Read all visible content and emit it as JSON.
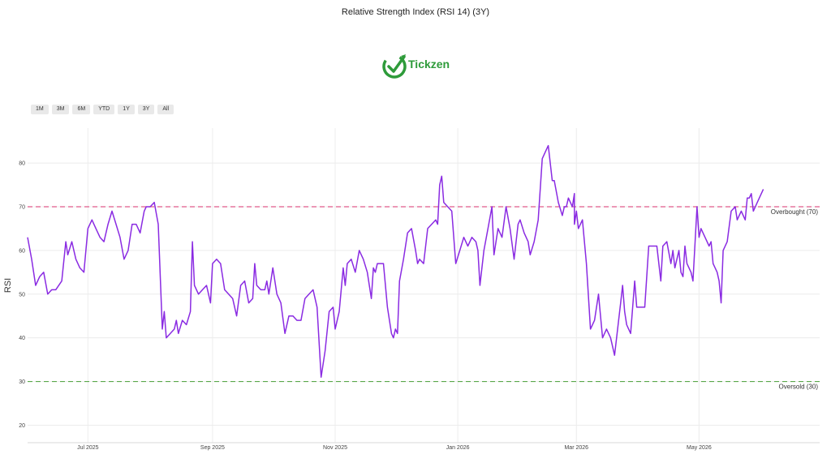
{
  "chart_data": {
    "type": "line",
    "title": "Relative Strength Index (RSI 14) (3Y)",
    "ylabel": "RSI",
    "xlabel": "",
    "ylim": [
      16,
      88
    ],
    "grid": true,
    "x_start": "2025-06-01",
    "x_end": "2026-06-30",
    "x_ticks": [
      {
        "date": "2025-07-01",
        "label": "Jul 2025"
      },
      {
        "date": "2025-09-01",
        "label": "Sep 2025"
      },
      {
        "date": "2025-11-01",
        "label": "Nov 2025"
      },
      {
        "date": "2026-01-01",
        "label": "Jan 2026"
      },
      {
        "date": "2026-03-01",
        "label": "Mar 2026"
      },
      {
        "date": "2026-05-01",
        "label": "May 2026"
      }
    ],
    "y_ticks": [
      20,
      30,
      40,
      50,
      60,
      70,
      80
    ],
    "reference_lines": [
      {
        "value": 70,
        "label": "Overbought (70)",
        "color": "#e05a8a"
      },
      {
        "value": 30,
        "label": "Oversold (30)",
        "color": "#5aa84a"
      }
    ],
    "series": [
      {
        "color": "#8a2be2",
        "points": [
          [
            "2025-06-01",
            63
          ],
          [
            "2025-06-03",
            58
          ],
          [
            "2025-06-05",
            52
          ],
          [
            "2025-06-07",
            54
          ],
          [
            "2025-06-09",
            55
          ],
          [
            "2025-06-11",
            50
          ],
          [
            "2025-06-13",
            51
          ],
          [
            "2025-06-15",
            51
          ],
          [
            "2025-06-18",
            53
          ],
          [
            "2025-06-20",
            62
          ],
          [
            "2025-06-21",
            59
          ],
          [
            "2025-06-23",
            62
          ],
          [
            "2025-06-25",
            58
          ],
          [
            "2025-06-27",
            56
          ],
          [
            "2025-06-29",
            55
          ],
          [
            "2025-07-01",
            65
          ],
          [
            "2025-07-03",
            67
          ],
          [
            "2025-07-05",
            65
          ],
          [
            "2025-07-07",
            63
          ],
          [
            "2025-07-09",
            62
          ],
          [
            "2025-07-11",
            66
          ],
          [
            "2025-07-13",
            69
          ],
          [
            "2025-07-15",
            66
          ],
          [
            "2025-07-17",
            63
          ],
          [
            "2025-07-19",
            58
          ],
          [
            "2025-07-21",
            60
          ],
          [
            "2025-07-23",
            66
          ],
          [
            "2025-07-25",
            66
          ],
          [
            "2025-07-27",
            64
          ],
          [
            "2025-07-29",
            69
          ],
          [
            "2025-07-30",
            70
          ],
          [
            "2025-08-01",
            70
          ],
          [
            "2025-08-03",
            71
          ],
          [
            "2025-08-05",
            66
          ],
          [
            "2025-08-07",
            42
          ],
          [
            "2025-08-08",
            46
          ],
          [
            "2025-08-09",
            40
          ],
          [
            "2025-08-11",
            41
          ],
          [
            "2025-08-13",
            42
          ],
          [
            "2025-08-14",
            44
          ],
          [
            "2025-08-15",
            41
          ],
          [
            "2025-08-17",
            44
          ],
          [
            "2025-08-19",
            43
          ],
          [
            "2025-08-21",
            46
          ],
          [
            "2025-08-22",
            62
          ],
          [
            "2025-08-23",
            52
          ],
          [
            "2025-08-25",
            50
          ],
          [
            "2025-08-27",
            51
          ],
          [
            "2025-08-29",
            52
          ],
          [
            "2025-08-31",
            48
          ],
          [
            "2025-09-01",
            57
          ],
          [
            "2025-09-03",
            58
          ],
          [
            "2025-09-05",
            57
          ],
          [
            "2025-09-07",
            51
          ],
          [
            "2025-09-09",
            50
          ],
          [
            "2025-09-11",
            49
          ],
          [
            "2025-09-13",
            45
          ],
          [
            "2025-09-15",
            52
          ],
          [
            "2025-09-17",
            53
          ],
          [
            "2025-09-19",
            48
          ],
          [
            "2025-09-21",
            49
          ],
          [
            "2025-09-22",
            57
          ],
          [
            "2025-09-23",
            52
          ],
          [
            "2025-09-25",
            51
          ],
          [
            "2025-09-27",
            51
          ],
          [
            "2025-09-28",
            53
          ],
          [
            "2025-09-29",
            50
          ],
          [
            "2025-10-01",
            56
          ],
          [
            "2025-10-03",
            50
          ],
          [
            "2025-10-05",
            48
          ],
          [
            "2025-10-07",
            41
          ],
          [
            "2025-10-09",
            45
          ],
          [
            "2025-10-11",
            45
          ],
          [
            "2025-10-13",
            44
          ],
          [
            "2025-10-15",
            44
          ],
          [
            "2025-10-17",
            49
          ],
          [
            "2025-10-19",
            50
          ],
          [
            "2025-10-21",
            51
          ],
          [
            "2025-10-23",
            47
          ],
          [
            "2025-10-25",
            31
          ],
          [
            "2025-10-27",
            37
          ],
          [
            "2025-10-29",
            46
          ],
          [
            "2025-10-31",
            47
          ],
          [
            "2025-11-01",
            42
          ],
          [
            "2025-11-03",
            46
          ],
          [
            "2025-11-05",
            56
          ],
          [
            "2025-11-06",
            52
          ],
          [
            "2025-11-07",
            57
          ],
          [
            "2025-11-09",
            58
          ],
          [
            "2025-11-11",
            55
          ],
          [
            "2025-11-13",
            60
          ],
          [
            "2025-11-15",
            58
          ],
          [
            "2025-11-17",
            55
          ],
          [
            "2025-11-19",
            49
          ],
          [
            "2025-11-20",
            56
          ],
          [
            "2025-11-21",
            55
          ],
          [
            "2025-11-22",
            57
          ],
          [
            "2025-11-25",
            57
          ],
          [
            "2025-11-27",
            47
          ],
          [
            "2025-11-29",
            41
          ],
          [
            "2025-11-30",
            40
          ],
          [
            "2025-12-01",
            42
          ],
          [
            "2025-12-02",
            41
          ],
          [
            "2025-12-03",
            53
          ],
          [
            "2025-12-05",
            58
          ],
          [
            "2025-12-07",
            64
          ],
          [
            "2025-12-09",
            65
          ],
          [
            "2025-12-11",
            60
          ],
          [
            "2025-12-12",
            57
          ],
          [
            "2025-12-13",
            58
          ],
          [
            "2025-12-15",
            57
          ],
          [
            "2025-12-17",
            65
          ],
          [
            "2025-12-19",
            66
          ],
          [
            "2025-12-21",
            67
          ],
          [
            "2025-12-22",
            66
          ],
          [
            "2025-12-23",
            75
          ],
          [
            "2025-12-24",
            77
          ],
          [
            "2025-12-25",
            71
          ],
          [
            "2025-12-27",
            70
          ],
          [
            "2025-12-29",
            69
          ],
          [
            "2025-12-31",
            57
          ],
          [
            "2026-01-02",
            60
          ],
          [
            "2026-01-04",
            63
          ],
          [
            "2026-01-06",
            61
          ],
          [
            "2026-01-08",
            63
          ],
          [
            "2026-01-10",
            62
          ],
          [
            "2026-01-11",
            60
          ],
          [
            "2026-01-12",
            52
          ],
          [
            "2026-01-14",
            60
          ],
          [
            "2026-01-16",
            65
          ],
          [
            "2026-01-18",
            70
          ],
          [
            "2026-01-19",
            59
          ],
          [
            "2026-01-21",
            65
          ],
          [
            "2026-01-23",
            63
          ],
          [
            "2026-01-25",
            70
          ],
          [
            "2026-01-27",
            65
          ],
          [
            "2026-01-29",
            58
          ],
          [
            "2026-01-31",
            66
          ],
          [
            "2026-02-01",
            67
          ],
          [
            "2026-02-03",
            64
          ],
          [
            "2026-02-05",
            62
          ],
          [
            "2026-02-06",
            59
          ],
          [
            "2026-02-08",
            62
          ],
          [
            "2026-02-10",
            67
          ],
          [
            "2026-02-12",
            81
          ],
          [
            "2026-02-14",
            83
          ],
          [
            "2026-02-15",
            84
          ],
          [
            "2026-02-17",
            76
          ],
          [
            "2026-02-18",
            76
          ],
          [
            "2026-02-20",
            71
          ],
          [
            "2026-02-22",
            68
          ],
          [
            "2026-02-23",
            70
          ],
          [
            "2026-02-24",
            70
          ],
          [
            "2026-02-25",
            72
          ],
          [
            "2026-02-27",
            70
          ],
          [
            "2026-02-28",
            73
          ],
          [
            "2026-02-28",
            66
          ],
          [
            "2026-03-01",
            69
          ],
          [
            "2026-03-02",
            65
          ],
          [
            "2026-03-04",
            67
          ],
          [
            "2026-03-06",
            57
          ],
          [
            "2026-03-08",
            42
          ],
          [
            "2026-03-10",
            44
          ],
          [
            "2026-03-12",
            50
          ],
          [
            "2026-03-14",
            40
          ],
          [
            "2026-03-16",
            42
          ],
          [
            "2026-03-18",
            40
          ],
          [
            "2026-03-20",
            36
          ],
          [
            "2026-03-22",
            44
          ],
          [
            "2026-03-23",
            48
          ],
          [
            "2026-03-24",
            52
          ],
          [
            "2026-03-25",
            46
          ],
          [
            "2026-03-26",
            43
          ],
          [
            "2026-03-28",
            41
          ],
          [
            "2026-03-30",
            53
          ],
          [
            "2026-03-31",
            47
          ],
          [
            "2026-04-02",
            47
          ],
          [
            "2026-04-04",
            47
          ],
          [
            "2026-04-06",
            61
          ],
          [
            "2026-04-08",
            61
          ],
          [
            "2026-04-10",
            61
          ],
          [
            "2026-04-12",
            53
          ],
          [
            "2026-04-13",
            61
          ],
          [
            "2026-04-15",
            62
          ],
          [
            "2026-04-17",
            57
          ],
          [
            "2026-04-18",
            60
          ],
          [
            "2026-04-19",
            56
          ],
          [
            "2026-04-21",
            60
          ],
          [
            "2026-04-22",
            55
          ],
          [
            "2026-04-23",
            54
          ],
          [
            "2026-04-24",
            61
          ],
          [
            "2026-04-25",
            57
          ],
          [
            "2026-04-27",
            55
          ],
          [
            "2026-04-28",
            53
          ],
          [
            "2026-04-30",
            70
          ],
          [
            "2026-05-01",
            63
          ],
          [
            "2026-05-02",
            65
          ],
          [
            "2026-05-04",
            63
          ],
          [
            "2026-05-06",
            61
          ],
          [
            "2026-05-07",
            62
          ],
          [
            "2026-05-08",
            57
          ],
          [
            "2026-05-10",
            55
          ],
          [
            "2026-05-11",
            53
          ],
          [
            "2026-05-12",
            48
          ],
          [
            "2026-05-13",
            60
          ],
          [
            "2026-05-15",
            62
          ],
          [
            "2026-05-17",
            69
          ],
          [
            "2026-05-19",
            70
          ],
          [
            "2026-05-20",
            67
          ],
          [
            "2026-05-22",
            69
          ],
          [
            "2026-05-24",
            67
          ],
          [
            "2026-05-25",
            72
          ],
          [
            "2026-05-26",
            72
          ],
          [
            "2026-05-27",
            73
          ],
          [
            "2026-05-28",
            69
          ],
          [
            "2026-05-30",
            71
          ],
          [
            "2026-06-02",
            74
          ]
        ]
      }
    ]
  },
  "range_buttons": [
    "1M",
    "3M",
    "6M",
    "YTD",
    "1Y",
    "3Y",
    "All"
  ],
  "logo": {
    "text": "Tickzen",
    "color": "#2e9b3a",
    "icon": "check-arrow-icon"
  }
}
